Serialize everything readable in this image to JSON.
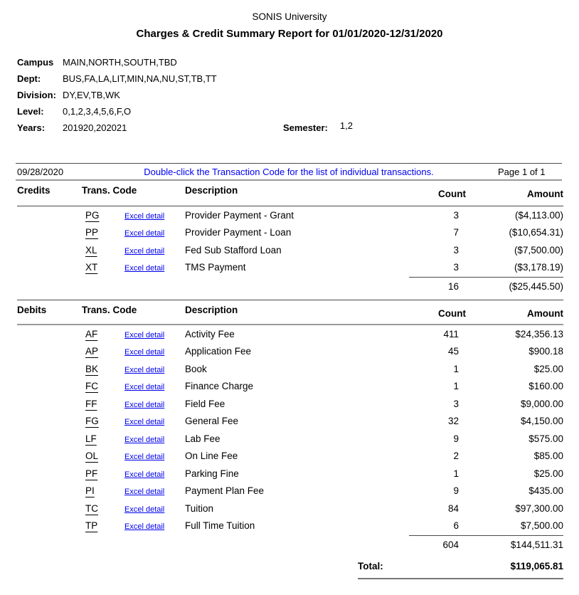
{
  "header": {
    "university": "SONIS University",
    "report_title": "Charges & Credit Summary Report for 01/01/2020-12/31/2020"
  },
  "filters": {
    "campus": {
      "label": "Campus",
      "value": "MAIN,NORTH,SOUTH,TBD"
    },
    "dept": {
      "label": "Dept:",
      "value": "BUS,FA,LA,LIT,MIN,NA,NU,ST,TB,TT"
    },
    "division": {
      "label": "Division:",
      "value": "DY,EV,TB,WK"
    },
    "level": {
      "label": "Level:",
      "value": "0,1,2,3,4,5,6,F,O"
    },
    "years": {
      "label": "Years:",
      "value": "201920,202021"
    },
    "semester": {
      "label": "Semester:",
      "value": "1,2"
    }
  },
  "meta": {
    "date": "09/28/2020",
    "instruction": "Double-click the Transaction Code for the list of individual transactions.",
    "page": "Page 1 of 1"
  },
  "columns": {
    "trans_code": "Trans. Code",
    "description": "Description",
    "count": "Count",
    "amount": "Amount"
  },
  "link_label": "Excel detail",
  "credits": {
    "section_label": "Credits",
    "rows": [
      {
        "code": "PG",
        "description": "Provider Payment - Grant",
        "count": "3",
        "amount": "($4,113.00)"
      },
      {
        "code": "PP",
        "description": "Provider Payment - Loan",
        "count": "7",
        "amount": "($10,654.31)"
      },
      {
        "code": "XL",
        "description": "Fed Sub Stafford Loan",
        "count": "3",
        "amount": "($7,500.00)"
      },
      {
        "code": "XT",
        "description": "TMS Payment",
        "count": "3",
        "amount": "($3,178.19)"
      }
    ],
    "subtotal": {
      "count": "16",
      "amount": "($25,445.50)"
    }
  },
  "debits": {
    "section_label": "Debits",
    "rows": [
      {
        "code": "AF",
        "description": "Activity Fee",
        "count": "411",
        "amount": "$24,356.13"
      },
      {
        "code": "AP",
        "description": "Application Fee",
        "count": "45",
        "amount": "$900.18"
      },
      {
        "code": "BK",
        "description": "Book",
        "count": "1",
        "amount": "$25.00"
      },
      {
        "code": "FC",
        "description": "Finance Charge",
        "count": "1",
        "amount": "$160.00"
      },
      {
        "code": "FF",
        "description": "Field Fee",
        "count": "3",
        "amount": "$9,000.00"
      },
      {
        "code": "FG",
        "description": "General Fee",
        "count": "32",
        "amount": "$4,150.00"
      },
      {
        "code": "LF",
        "description": "Lab Fee",
        "count": "9",
        "amount": "$575.00"
      },
      {
        "code": "OL",
        "description": "On Line Fee",
        "count": "2",
        "amount": "$85.00"
      },
      {
        "code": "PF",
        "description": "Parking Fine",
        "count": "1",
        "amount": "$25.00"
      },
      {
        "code": "PI",
        "description": "Payment Plan Fee",
        "count": "9",
        "amount": "$435.00"
      },
      {
        "code": "TC",
        "description": "Tuition",
        "count": "84",
        "amount": "$97,300.00"
      },
      {
        "code": "TP",
        "description": "Full Time Tuition",
        "count": "6",
        "amount": "$7,500.00"
      }
    ],
    "subtotal": {
      "count": "604",
      "amount": "$144,511.31"
    }
  },
  "total": {
    "label": "Total:",
    "amount": "$119,065.81"
  },
  "colors": {
    "link_blue": "#0000ee",
    "instruction_blue": "#0000f0",
    "rule_dark": "#4a4a4a",
    "rule_gray": "#9a9a9a"
  }
}
